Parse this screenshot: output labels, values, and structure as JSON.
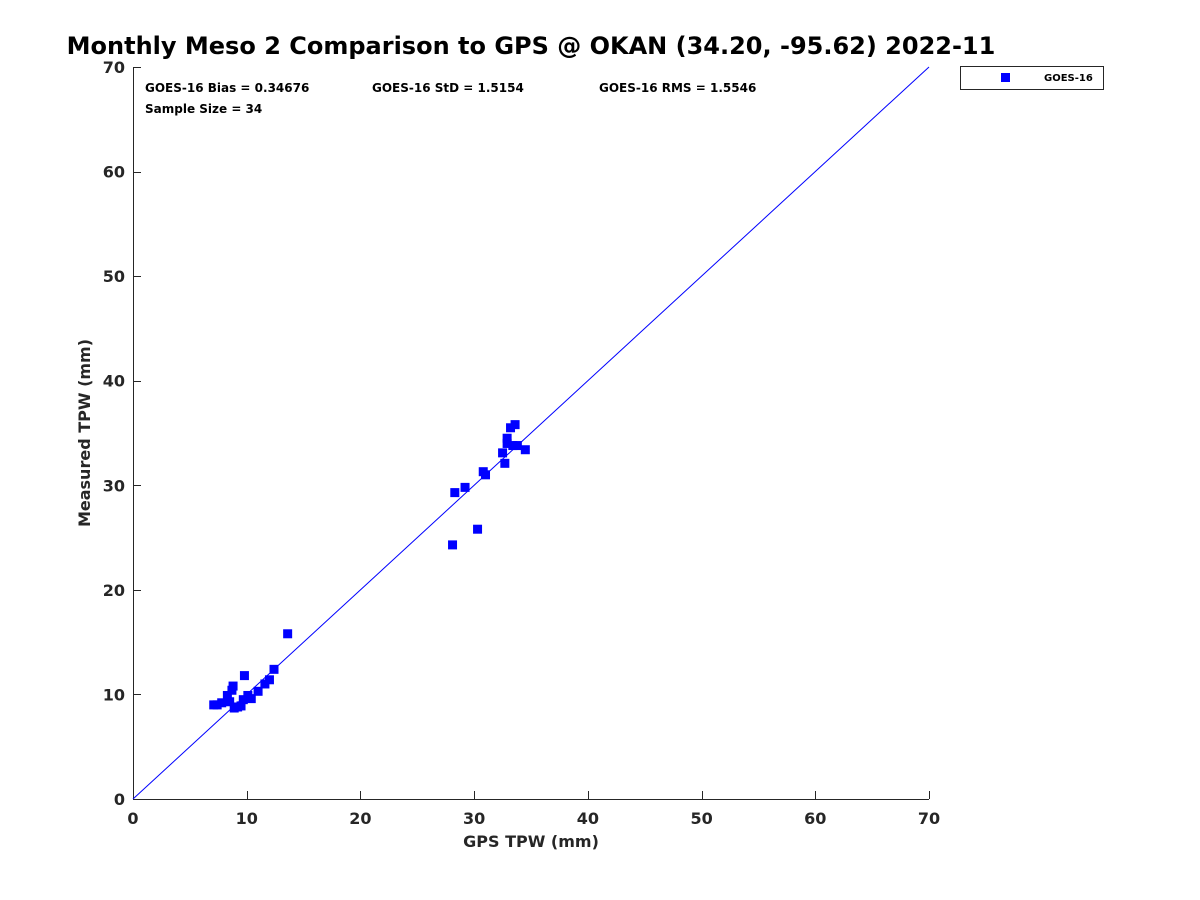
{
  "chart_data": {
    "type": "scatter",
    "title": "Monthly Meso 2 Comparison to GPS @ OKAN (34.20, -95.62) 2022-11",
    "xlabel": "GPS TPW (mm)",
    "ylabel": "Measured TPW (mm)",
    "xlim": [
      0,
      70
    ],
    "ylim": [
      0,
      70
    ],
    "xticks": [
      0,
      10,
      20,
      30,
      40,
      50,
      60,
      70
    ],
    "yticks": [
      0,
      10,
      20,
      30,
      40,
      50,
      60,
      70
    ],
    "grid": false,
    "legend_position": "top-right-outside",
    "reference_line": {
      "from": [
        0,
        0
      ],
      "to": [
        70,
        70
      ],
      "color": "#0000ff"
    },
    "stats": {
      "bias": "GOES-16 Bias = 0.34676",
      "std": "GOES-16 StD = 1.5154",
      "rms": "GOES-16 RMS = 1.5546",
      "sample_size": "Sample Size = 34"
    },
    "series": [
      {
        "name": "GOES-16",
        "color": "#0000ff",
        "marker": "square",
        "points": [
          [
            7.1,
            9.0
          ],
          [
            7.4,
            9.0
          ],
          [
            7.8,
            9.2
          ],
          [
            8.3,
            9.9
          ],
          [
            8.5,
            9.3
          ],
          [
            8.7,
            10.4
          ],
          [
            8.8,
            10.8
          ],
          [
            8.9,
            8.7
          ],
          [
            9.2,
            8.8
          ],
          [
            9.5,
            8.9
          ],
          [
            9.7,
            9.5
          ],
          [
            9.8,
            11.8
          ],
          [
            10.1,
            9.9
          ],
          [
            10.4,
            9.6
          ],
          [
            11.0,
            10.3
          ],
          [
            11.6,
            11.0
          ],
          [
            12.0,
            11.4
          ],
          [
            12.4,
            12.4
          ],
          [
            13.6,
            15.8
          ],
          [
            28.1,
            24.3
          ],
          [
            28.3,
            29.3
          ],
          [
            29.2,
            29.8
          ],
          [
            30.3,
            25.8
          ],
          [
            30.8,
            31.3
          ],
          [
            31.0,
            31.0
          ],
          [
            32.5,
            33.1
          ],
          [
            32.7,
            32.1
          ],
          [
            32.9,
            34.0
          ],
          [
            32.9,
            34.5
          ],
          [
            33.2,
            35.5
          ],
          [
            33.4,
            33.8
          ],
          [
            33.6,
            35.8
          ],
          [
            33.8,
            33.8
          ],
          [
            34.5,
            33.4
          ]
        ]
      }
    ]
  }
}
